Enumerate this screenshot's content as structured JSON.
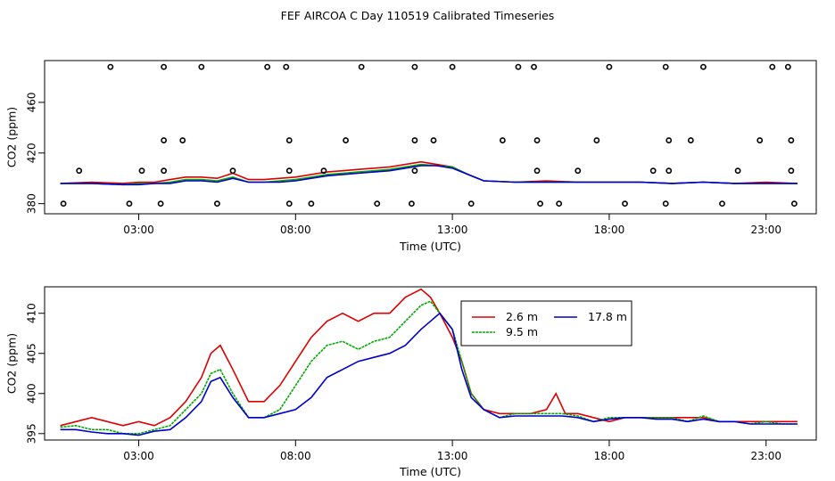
{
  "chart_data": {
    "title": "FEF AIRCOA C  Day 110519  Calibrated Timeseries",
    "panels": [
      {
        "type": "line",
        "xlabel": "Time (UTC)",
        "ylabel": "CO2 (ppm)",
        "xlim": [
          0,
          24.6
        ],
        "ylim": [
          372,
          493
        ],
        "xticks": [
          3,
          8,
          13,
          18,
          23
        ],
        "xtick_labels": [
          "03:00",
          "08:00",
          "13:00",
          "18:00",
          "23:00"
        ],
        "yticks": [
          380,
          420,
          460
        ],
        "ytick_labels": [
          "380",
          "420",
          "460"
        ],
        "series": [
          {
            "name": "2.6 m",
            "color": "#dd0000",
            "x": [
              0.5,
              1.5,
              2.5,
              3,
              3.5,
              4,
              4.5,
              5,
              5.5,
              6,
              6.5,
              7,
              7.5,
              8,
              8.5,
              9,
              9.5,
              10,
              10.5,
              11,
              11.5,
              12,
              12.5,
              13,
              13.5,
              14,
              15,
              16,
              17,
              18,
              19,
              20,
              21,
              22,
              23,
              24
            ],
            "y": [
              396,
              397,
              396,
              397,
              397,
              399,
              401,
              401,
              400,
              404,
              399,
              399,
              400,
              401,
              403,
              405,
              406,
              407,
              408,
              409,
              411,
              413,
              411,
              409,
              403,
              398,
              397,
              398,
              397,
              397,
              397,
              396,
              397,
              396,
              397,
              396
            ]
          },
          {
            "name": "9.5 m",
            "color": "#00aa00",
            "x": [
              0.5,
              1.5,
              2.5,
              3,
              3.5,
              4,
              4.5,
              5,
              5.5,
              6,
              6.5,
              7,
              7.5,
              8,
              8.5,
              9,
              9.5,
              10,
              10.5,
              11,
              11.5,
              12,
              12.5,
              13,
              13.5,
              14,
              15,
              16,
              17,
              18,
              19,
              20,
              21,
              22,
              23,
              24
            ],
            "y": [
              396,
              396,
              395,
              396,
              396,
              397,
              399,
              399,
              398,
              401,
              397,
              397,
              398,
              399,
              401,
              403,
              404,
              405,
              406,
              407,
              409,
              411,
              410,
              409,
              403,
              398,
              397,
              397,
              397,
              397,
              397,
              396,
              397,
              396,
              396,
              396
            ]
          },
          {
            "name": "17.8 m",
            "color": "#0000cc",
            "x": [
              0.5,
              1.5,
              2.5,
              3,
              3.5,
              4,
              4.5,
              5,
              5.5,
              6,
              6.5,
              7,
              7.5,
              8,
              8.5,
              9,
              9.5,
              10,
              10.5,
              11,
              11.5,
              12,
              12.5,
              13,
              13.5,
              14,
              15,
              16,
              17,
              18,
              19,
              20,
              21,
              22,
              23,
              24
            ],
            "y": [
              396,
              396,
              395,
              395,
              396,
              396,
              398,
              398,
              397,
              400,
              397,
              397,
              397,
              398,
              400,
              402,
              403,
              404,
              405,
              406,
              408,
              410,
              410,
              408,
              403,
              398,
              397,
              397,
              397,
              397,
              397,
              396,
              397,
              396,
              396,
              396
            ]
          }
        ],
        "markers": {
          "symbol": "open-circle",
          "x": [
            2.1,
            3.8,
            5,
            7.1,
            7.7,
            10.1,
            11.8,
            13,
            15.1,
            15.6,
            18,
            19.8,
            21,
            23.2,
            23.7,
            1.1,
            3.1,
            3.8,
            6,
            7.8,
            8.9,
            11.8,
            15.7,
            17,
            19.4,
            19.9,
            22.1,
            23.8,
            3.8,
            4.4,
            7.8,
            9.6,
            11.8,
            12.4,
            14.6,
            15.7,
            17.6,
            19.9,
            20.6,
            22.8,
            23.8,
            0.6,
            2.7,
            3.7,
            5.5,
            7.8,
            8.5,
            10.6,
            11.7,
            13.6,
            15.8,
            16.4,
            18.5,
            19.8,
            21.6,
            23.9
          ],
          "y": [
            488,
            488,
            488,
            488,
            488,
            488,
            488,
            488,
            488,
            488,
            488,
            488,
            488,
            488,
            488,
            406,
            406,
            406,
            406,
            406,
            406,
            406,
            406,
            406,
            406,
            406,
            406,
            406,
            430,
            430,
            430,
            430,
            430,
            430,
            430,
            430,
            430,
            430,
            430,
            430,
            430,
            380,
            380,
            380,
            380,
            380,
            380,
            380,
            380,
            380,
            380,
            380,
            380,
            380,
            380,
            380
          ]
        }
      },
      {
        "type": "line",
        "xlabel": "Time (UTC)",
        "ylabel": "CO2 (ppm)",
        "xlim": [
          0,
          24.6
        ],
        "ylim": [
          394.2,
          413.3
        ],
        "xticks": [
          3,
          8,
          13,
          18,
          23
        ],
        "xtick_labels": [
          "03:00",
          "08:00",
          "13:00",
          "18:00",
          "23:00"
        ],
        "yticks": [
          395,
          400,
          405,
          410
        ],
        "ytick_labels": [
          "395",
          "400",
          "405",
          "410"
        ],
        "legend": {
          "placement": "top-center",
          "labels": [
            "2.6 m",
            "9.5 m",
            "17.8 m"
          ]
        },
        "series": [
          {
            "name": "2.6 m",
            "color": "#dd0000",
            "x": [
              0.5,
              1,
              1.5,
              2,
              2.5,
              3,
              3.5,
              4,
              4.5,
              5,
              5.3,
              5.6,
              6,
              6.5,
              7,
              7.5,
              8,
              8.5,
              9,
              9.5,
              10,
              10.5,
              11,
              11.5,
              12,
              12.3,
              12.6,
              13,
              13.3,
              13.6,
              14,
              14.5,
              15,
              15.5,
              16,
              16.3,
              16.6,
              17,
              17.5,
              18,
              18.5,
              19,
              19.5,
              20,
              20.5,
              21,
              21.5,
              22,
              22.5,
              23,
              23.5,
              24
            ],
            "y": [
              396,
              396.5,
              397,
              396.5,
              396,
              396.5,
              396,
              397,
              399,
              402,
              405,
              406,
              403,
              399,
              399,
              401,
              404,
              407,
              409,
              410,
              409,
              410,
              410,
              412,
              413,
              412,
              410,
              407,
              404,
              400,
              398,
              397.5,
              397.5,
              397.5,
              398,
              400,
              397.5,
              397.5,
              397,
              396.5,
              397,
              397,
              397,
              397,
              397,
              397,
              396.5,
              396.5,
              396.5,
              396.5,
              396.5,
              396.5
            ]
          },
          {
            "name": "9.5 m",
            "color": "#00aa00",
            "x": [
              0.5,
              1,
              1.5,
              2,
              2.5,
              3,
              3.5,
              4,
              4.5,
              5,
              5.3,
              5.6,
              6,
              6.5,
              7,
              7.5,
              8,
              8.5,
              9,
              9.5,
              10,
              10.5,
              11,
              11.5,
              12,
              12.3,
              12.6,
              13,
              13.3,
              13.6,
              14,
              14.5,
              15,
              15.5,
              16,
              16.5,
              17,
              17.5,
              18,
              18.5,
              19,
              19.5,
              20,
              20.5,
              21,
              21.5,
              22,
              22.5,
              23,
              23.5,
              24
            ],
            "y": [
              395.8,
              396,
              395.5,
              395.5,
              395,
              395,
              395.5,
              396,
              398,
              400,
              402.5,
              403,
              400,
              397,
              397,
              398,
              401,
              404,
              406,
              406.5,
              405.5,
              406.5,
              407,
              409,
              411,
              411.5,
              410,
              408,
              404,
              400,
              398,
              397,
              397.5,
              397.5,
              397.5,
              397.5,
              397.2,
              396.5,
              397,
              397,
              397,
              397,
              397,
              396.5,
              397.2,
              396.5,
              396.5,
              396.2,
              396.5,
              396.2,
              396.2
            ]
          },
          {
            "name": "17.8 m",
            "color": "#0000cc",
            "x": [
              0.5,
              1,
              1.5,
              2,
              2.5,
              3,
              3.5,
              4,
              4.5,
              5,
              5.3,
              5.6,
              6,
              6.5,
              7,
              7.5,
              8,
              8.5,
              9,
              9.5,
              10,
              10.5,
              11,
              11.5,
              12,
              12.3,
              12.6,
              13,
              13.3,
              13.6,
              14,
              14.5,
              15,
              15.5,
              16,
              16.5,
              17,
              17.5,
              18,
              18.5,
              19,
              19.5,
              20,
              20.5,
              21,
              21.5,
              22,
              22.5,
              23,
              23.5,
              24
            ],
            "y": [
              395.5,
              395.5,
              395.2,
              395,
              395,
              394.8,
              395.3,
              395.5,
              397,
              399,
              401.5,
              402,
              399.5,
              397,
              397,
              397.5,
              398,
              399.5,
              402,
              403,
              404,
              404.5,
              405,
              406,
              408,
              409,
              410,
              408,
              403,
              399.5,
              398,
              397,
              397.2,
              397.2,
              397.2,
              397.2,
              397,
              396.5,
              396.8,
              397,
              397,
              396.8,
              396.8,
              396.5,
              396.8,
              396.5,
              396.5,
              396.2,
              396.2,
              396.2,
              396.2
            ]
          }
        ]
      }
    ]
  }
}
